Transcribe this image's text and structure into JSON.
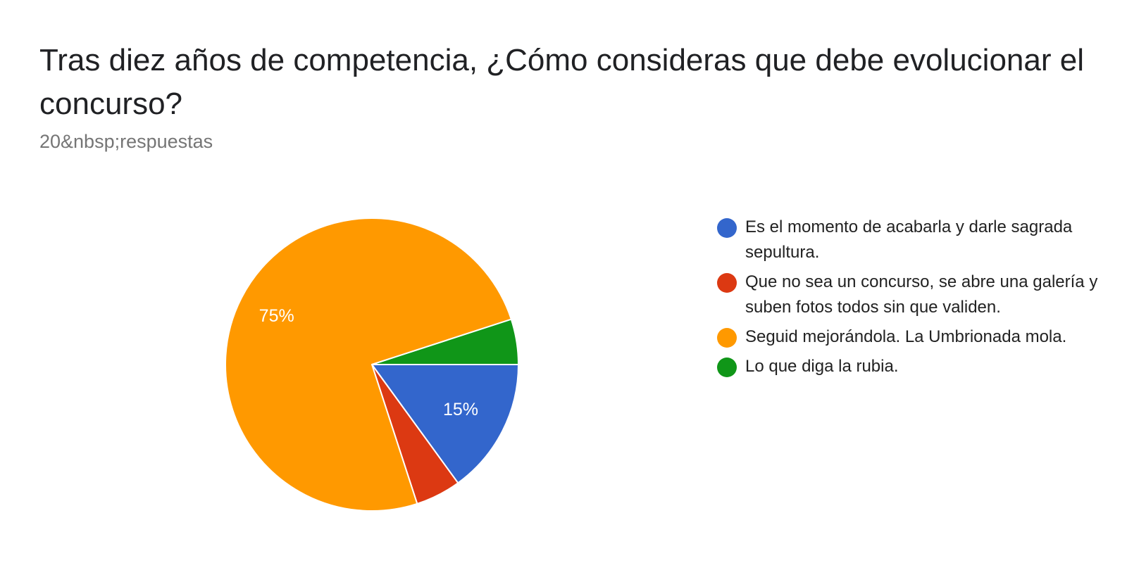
{
  "header": {
    "title": "Tras diez años de competencia, ¿Cómo consideras que debe evolucionar el concurso?",
    "responses": "20&nbsp;respuestas"
  },
  "chart_data": {
    "type": "pie",
    "title": "Tras diez años de competencia, ¿Cómo consideras que debe evolucionar el concurso?",
    "categories": [
      "Es el momento de acabarla y darle sagrada sepultura.",
      "Que no sea un concurso, se abre una galería y suben fotos todos sin que validen.",
      "Seguid mejorándola. La Umbrionada mola.",
      "Lo que diga la rubia."
    ],
    "values": [
      15,
      5,
      75,
      5
    ],
    "counts": [
      3,
      1,
      15,
      1
    ],
    "data_labels": [
      "15%",
      "",
      "75%",
      ""
    ],
    "colors": [
      "#3366cc",
      "#dc3912",
      "#ff9900",
      "#109618"
    ],
    "legend": "right"
  }
}
